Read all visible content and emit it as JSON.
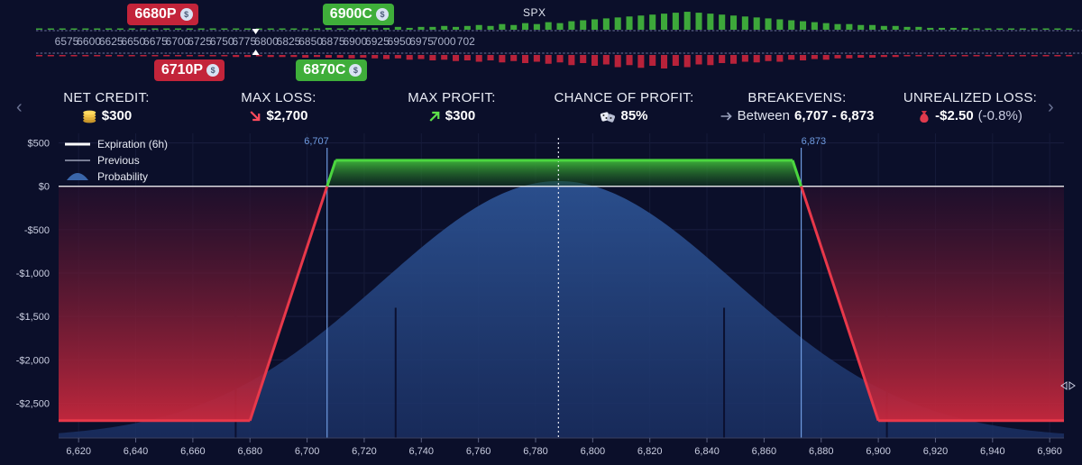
{
  "underlying": "SPX",
  "legs": [
    {
      "label": "6680P",
      "type": "put",
      "strike": 6680,
      "row": "top"
    },
    {
      "label": "6710P",
      "type": "put",
      "strike": 6710,
      "row": "bottom"
    },
    {
      "label": "6870C",
      "type": "call",
      "strike": 6870,
      "row": "bottom"
    },
    {
      "label": "6900C",
      "type": "call",
      "strike": 6900,
      "row": "top"
    }
  ],
  "leg_coin_glyph": "$",
  "strike_ladder": {
    "labels": [
      "6575",
      "6600",
      "6625",
      "6650",
      "6675",
      "6700",
      "6725",
      "6750",
      "6775",
      "6800",
      "6825",
      "6850",
      "6875",
      "6900",
      "6925",
      "6950",
      "6975",
      "7000",
      "702"
    ],
    "spot": 6788,
    "put_volume": [
      1,
      1,
      1,
      1,
      1,
      1,
      1,
      1,
      2,
      1,
      2,
      1,
      2,
      2,
      2,
      2,
      2,
      3,
      3,
      2,
      3,
      3,
      3,
      4,
      3,
      4,
      4,
      5,
      4,
      5,
      6,
      5,
      7,
      6,
      8,
      7,
      9,
      8,
      10,
      8,
      11,
      9,
      12,
      10,
      13,
      11,
      15,
      12,
      16,
      14,
      18,
      15,
      19,
      16,
      20,
      16,
      18,
      14,
      15,
      12,
      13,
      10,
      11,
      9,
      10,
      7,
      8,
      6,
      7,
      5,
      5,
      4,
      4,
      3,
      3,
      2,
      2,
      2,
      2,
      1,
      1,
      1,
      1,
      1,
      1,
      1,
      1,
      1,
      1,
      1
    ],
    "call_volume": [
      1,
      1,
      1,
      1,
      1,
      1,
      1,
      1,
      1,
      1,
      1,
      1,
      1,
      1,
      1,
      1,
      1,
      1,
      1,
      1,
      1,
      1,
      1,
      1,
      1,
      2,
      1,
      2,
      2,
      2,
      2,
      3,
      2,
      3,
      3,
      4,
      3,
      4,
      5,
      4,
      6,
      5,
      7,
      6,
      8,
      7,
      9,
      10,
      11,
      12,
      13,
      14,
      15,
      16,
      17,
      18,
      19,
      18,
      17,
      16,
      15,
      14,
      13,
      12,
      11,
      10,
      9,
      8,
      7,
      6,
      6,
      5,
      5,
      4,
      4,
      3,
      3,
      2,
      2,
      2,
      2,
      1,
      1,
      1,
      1,
      1,
      1,
      1,
      1,
      1
    ]
  },
  "metrics": {
    "net_credit": {
      "label": "NET CREDIT:",
      "value": "$300",
      "icon": "coins-icon"
    },
    "max_loss": {
      "label": "MAX LOSS:",
      "value": "$2,700",
      "icon": "arrow-down-right-icon"
    },
    "max_profit": {
      "label": "MAX PROFIT:",
      "value": "$300",
      "icon": "arrow-up-right-icon"
    },
    "chance_of_profit": {
      "label": "CHANCE OF PROFIT:",
      "value": "85%",
      "icon": "dice-icon"
    },
    "breakevens": {
      "label": "BREAKEVENS:",
      "prefix": "Between",
      "value": "6,707 - 6,873",
      "icon": "arrow-right-icon"
    },
    "unrealized_loss": {
      "label": "UNREALIZED LOSS:",
      "value": "-$2.50",
      "paren": "(-0.8%)",
      "icon": "money-bag-icon"
    }
  },
  "nav": {
    "prev_glyph": "‹",
    "next_glyph": "›"
  },
  "chart_data": {
    "type": "line",
    "xlim": [
      6613,
      6965
    ],
    "ylim": [
      -2900,
      610
    ],
    "x_ticks": [
      6620,
      6640,
      6660,
      6680,
      6700,
      6720,
      6740,
      6760,
      6780,
      6800,
      6820,
      6840,
      6860,
      6880,
      6900,
      6920,
      6940,
      6960
    ],
    "x_tick_labels": [
      "6,620",
      "6,640",
      "6,660",
      "6,680",
      "6,700",
      "6,720",
      "6,740",
      "6,760",
      "6,780",
      "6,800",
      "6,820",
      "6,840",
      "6,860",
      "6,880",
      "6,900",
      "6,920",
      "6,940",
      "6,960"
    ],
    "y_ticks": [
      500,
      0,
      -500,
      -1000,
      -1500,
      -2000,
      -2500
    ],
    "y_tick_labels": [
      "$500",
      "$0",
      "-$500",
      "-$1,000",
      "-$1,500",
      "-$2,000",
      "-$2,500"
    ],
    "legend": {
      "placement": "top-left",
      "entries": [
        {
          "name": "Expiration (6h)",
          "style": "thick-line"
        },
        {
          "name": "Previous",
          "style": "thin-line"
        },
        {
          "name": "Probability",
          "style": "area"
        }
      ]
    },
    "series": [
      {
        "name": "Expiration (6h)",
        "x": [
          6613,
          6680,
          6710,
          6870,
          6900,
          6965
        ],
        "y": [
          -2700,
          -2700,
          300,
          300,
          -2700,
          -2700
        ]
      },
      {
        "name": "Probability",
        "center": 6788,
        "sigma": 62,
        "peak_y": 60
      }
    ],
    "breakevens": [
      6707,
      6873
    ],
    "breakeven_labels": [
      "6,707",
      "6,873"
    ],
    "spot": 6788,
    "strike_lines": [
      6675,
      6731,
      6846,
      6903
    ],
    "colors": {
      "profit": "#4bd63f",
      "loss": "#e8384a",
      "breakeven": "#6f9be0",
      "probability": "#2a4c86",
      "zero_line": "#ffffff"
    },
    "grid": true
  }
}
